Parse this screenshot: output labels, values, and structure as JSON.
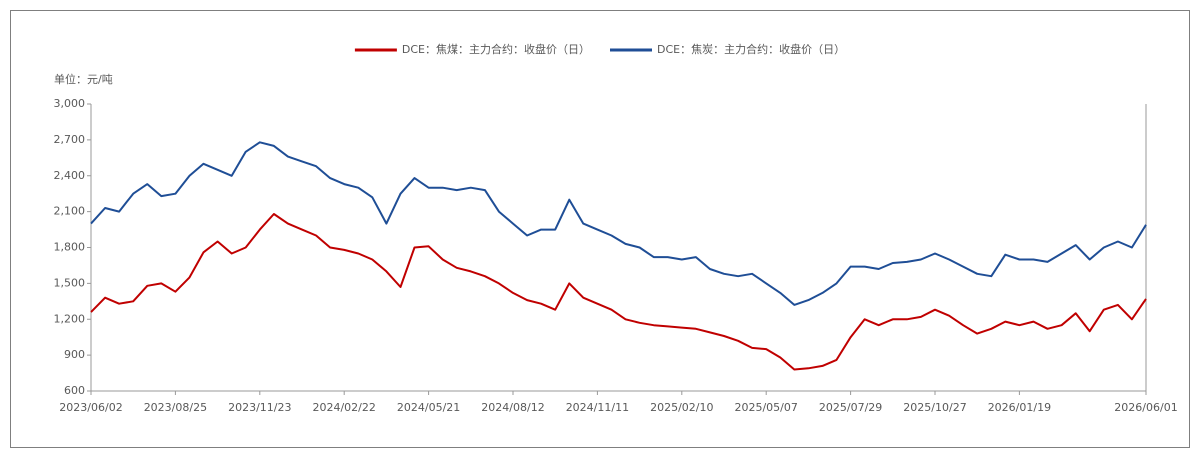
{
  "chart_data": {
    "type": "line",
    "unit_label": "单位：元/吨",
    "x": [
      "2023/06/02",
      null,
      null,
      null,
      null,
      null,
      "2023/08/25",
      null,
      null,
      null,
      null,
      null,
      "2023/11/23",
      null,
      null,
      null,
      null,
      null,
      "2024/02/22",
      null,
      null,
      null,
      null,
      null,
      "2024/05/21",
      null,
      null,
      null,
      null,
      null,
      "2024/08/12",
      null,
      null,
      null,
      null,
      null,
      "2024/11/11",
      null,
      null,
      null,
      null,
      null,
      "2025/02/10",
      null,
      null,
      null,
      null,
      null,
      "2025/05/07",
      null,
      null,
      null,
      null,
      null,
      "2025/07/29",
      null,
      null,
      null,
      null,
      null,
      "2025/10/27",
      null,
      null,
      null,
      null,
      null,
      "2026/01/19",
      null,
      null,
      null,
      null,
      null,
      null,
      null,
      null,
      "2026/06/01"
    ],
    "xticks": [
      0,
      6,
      12,
      18,
      24,
      30,
      36,
      42,
      48,
      54,
      60,
      66,
      75
    ],
    "series": [
      {
        "name": "DCE：焦煤：主力合约：收盘价（日）",
        "color": "#c00000",
        "values": [
          1260,
          1380,
          1330,
          1350,
          1480,
          1500,
          1430,
          1550,
          1760,
          1850,
          1750,
          1800,
          1950,
          2080,
          2000,
          1950,
          1900,
          1800,
          1780,
          1750,
          1700,
          1600,
          1470,
          1800,
          1810,
          1700,
          1630,
          1600,
          1560,
          1500,
          1420,
          1360,
          1330,
          1280,
          1500,
          1380,
          1330,
          1280,
          1200,
          1170,
          1150,
          1140,
          1130,
          1120,
          1090,
          1060,
          1020,
          960,
          950,
          880,
          780,
          790,
          810,
          860,
          1050,
          1200,
          1150,
          1200,
          1200,
          1220,
          1280,
          1230,
          1150,
          1080,
          1120,
          1180,
          1150,
          1180,
          1120,
          1150,
          1250,
          1100,
          1280,
          1320,
          1200,
          1370
        ]
      },
      {
        "name": "DCE：焦炭：主力合约：收盘价（日）",
        "color": "#1f4e96",
        "values": [
          2000,
          2130,
          2100,
          2250,
          2330,
          2230,
          2250,
          2400,
          2500,
          2450,
          2400,
          2600,
          2680,
          2650,
          2560,
          2520,
          2480,
          2380,
          2330,
          2300,
          2220,
          2000,
          2250,
          2380,
          2300,
          2300,
          2280,
          2300,
          2280,
          2100,
          2000,
          1900,
          1950,
          1950,
          2200,
          2000,
          1950,
          1900,
          1830,
          1800,
          1720,
          1720,
          1700,
          1720,
          1620,
          1580,
          1560,
          1580,
          1500,
          1420,
          1320,
          1360,
          1420,
          1500,
          1640,
          1640,
          1620,
          1670,
          1680,
          1700,
          1750,
          1700,
          1640,
          1580,
          1560,
          1740,
          1700,
          1700,
          1680,
          1750,
          1820,
          1700,
          1800,
          1850,
          1800,
          1990
        ]
      }
    ],
    "ylim": [
      600,
      3000
    ],
    "yticks": [
      600,
      900,
      {
        "value": 1200,
        "label": "1,200"
      },
      {
        "value": 1500,
        "label": "1,500"
      },
      {
        "value": 1800,
        "label": "1,800"
      },
      {
        "value": 2100,
        "label": "2,100"
      },
      {
        "value": 2400,
        "label": "2,400"
      },
      {
        "value": 2700,
        "label": "2,700"
      },
      {
        "value": 3000,
        "label": "3,000"
      }
    ]
  }
}
